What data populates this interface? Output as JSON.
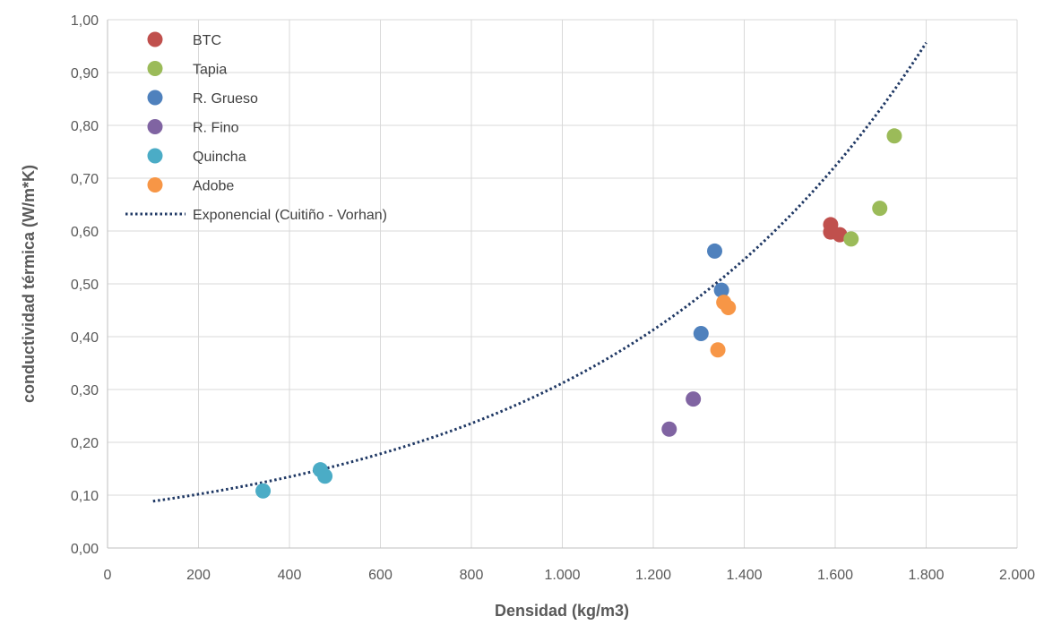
{
  "chart_data": {
    "type": "scatter",
    "xlabel": "Densidad (kg/m3)",
    "ylabel": "conductividad térmica (W/m*K)",
    "xlim": [
      0,
      2000
    ],
    "ylim": [
      0,
      1
    ],
    "x_ticks": [
      "0",
      "200",
      "400",
      "600",
      "800",
      "1.000",
      "1.200",
      "1.400",
      "1.600",
      "1.800",
      "2.000"
    ],
    "y_ticks": [
      "0,00",
      "0,10",
      "0,20",
      "0,30",
      "0,40",
      "0,50",
      "0,60",
      "0,70",
      "0,80",
      "0,90",
      "1,00"
    ],
    "grid": true,
    "legend_position": "top-left",
    "series": [
      {
        "name": "BTC",
        "color": "#c0504d",
        "points": [
          [
            1590,
            0.612
          ],
          [
            1590,
            0.598
          ],
          [
            1610,
            0.593
          ]
        ]
      },
      {
        "name": "Tapia",
        "color": "#9bbb59",
        "points": [
          [
            1635,
            0.585
          ],
          [
            1698,
            0.643
          ],
          [
            1730,
            0.78
          ]
        ]
      },
      {
        "name": "R. Grueso",
        "color": "#4f81bd",
        "points": [
          [
            1335,
            0.562
          ],
          [
            1350,
            0.488
          ],
          [
            1305,
            0.406
          ]
        ]
      },
      {
        "name": "R. Fino",
        "color": "#8064a2",
        "points": [
          [
            1235,
            0.225
          ],
          [
            1288,
            0.282
          ]
        ]
      },
      {
        "name": "Quincha",
        "color": "#4bacc6",
        "points": [
          [
            342,
            0.108
          ],
          [
            468,
            0.148
          ],
          [
            478,
            0.136
          ]
        ]
      },
      {
        "name": "Adobe",
        "color": "#f79646",
        "points": [
          [
            1355,
            0.465
          ],
          [
            1365,
            0.455
          ],
          [
            1342,
            0.375
          ]
        ]
      }
    ],
    "trendline": {
      "name": "Exponencial (Cuitiño - Vorhan)",
      "type": "exponential",
      "color": "#1f3864",
      "a": 0.07695,
      "b": 0.0014,
      "x_range": [
        100,
        1800
      ]
    }
  }
}
